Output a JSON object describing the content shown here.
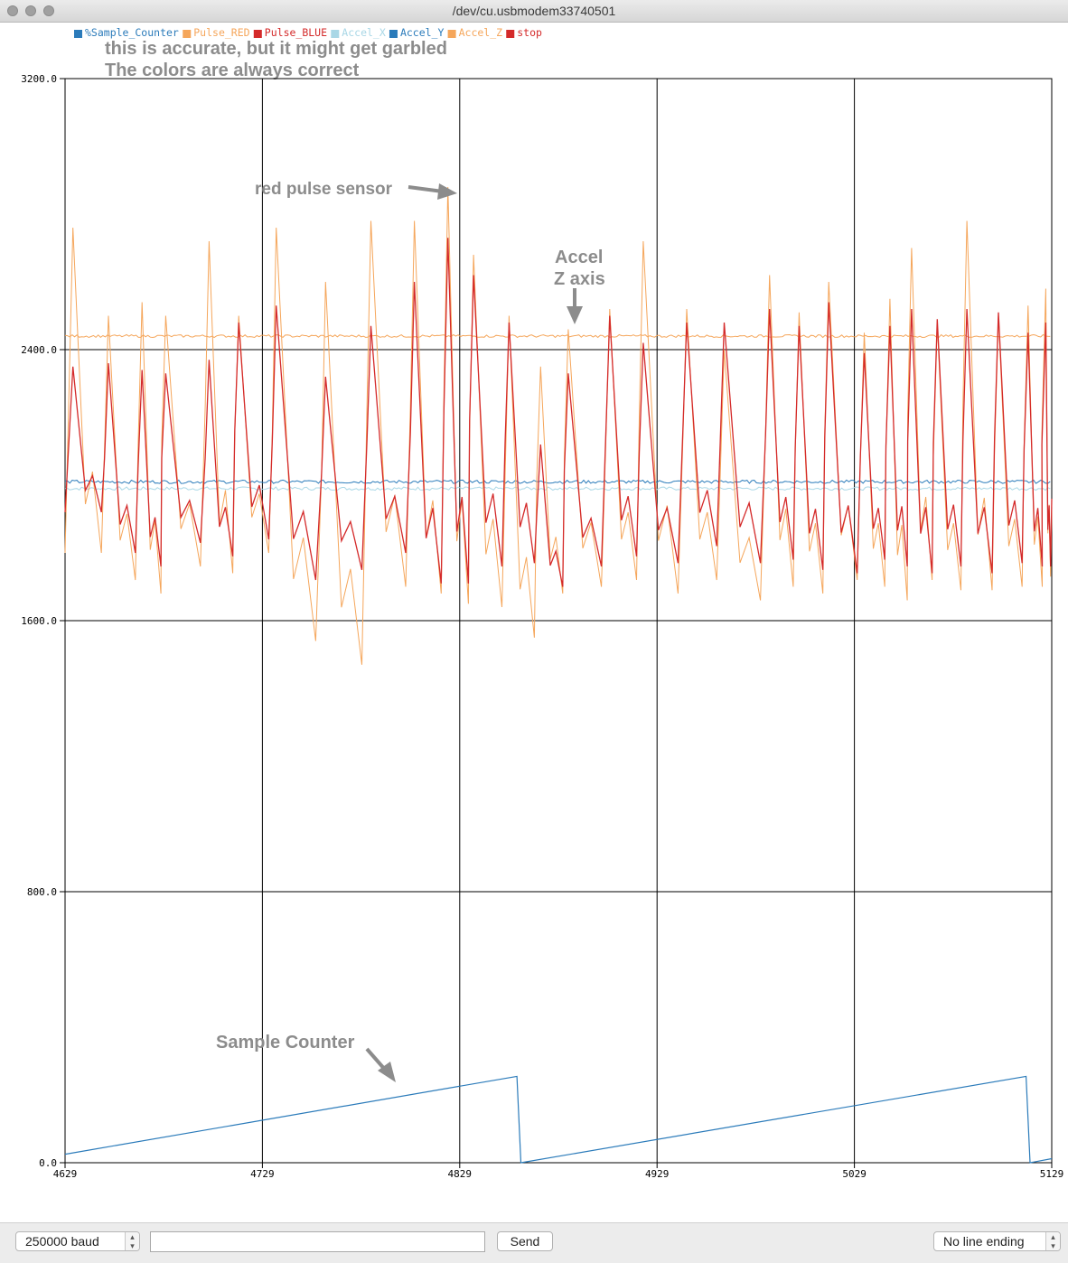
{
  "window": {
    "title": "/dev/cu.usbmodem33740501"
  },
  "legend": [
    {
      "label": "%Sample_Counter",
      "color": "#2b7bba"
    },
    {
      "label": "Pulse_RED",
      "color": "#f5a65b"
    },
    {
      "label": "Pulse_BLUE",
      "color": "#d42a2a"
    },
    {
      "label": "Accel_X",
      "color": "#a9d7e6"
    },
    {
      "label": "Accel_Y",
      "color": "#2b7bba"
    },
    {
      "label": "Accel_Z",
      "color": "#f5a65b"
    },
    {
      "label": "stop",
      "color": "#d42a2a"
    }
  ],
  "annotations": {
    "legend_note_1": "this is accurate, but it might get garbled",
    "legend_note_2": "The colors are always correct",
    "red_pulse": "red pulse sensor",
    "accel_z_1": "Accel",
    "accel_z_2": "Z axis",
    "sample_counter": "Sample Counter"
  },
  "chart_data": {
    "type": "line",
    "title": "",
    "xlabel": "",
    "ylabel": "",
    "xlim": [
      4629,
      5129
    ],
    "ylim": [
      0,
      3200
    ],
    "x_ticks": [
      "4629",
      "4729",
      "4829",
      "4929",
      "5029",
      "5129"
    ],
    "y_ticks": [
      "3200.0",
      "2400.0",
      "1600.0",
      "800.0",
      "0.0"
    ],
    "grid": true,
    "legend_position": "top-left",
    "series": [
      {
        "name": "%Sample_Counter",
        "color": "#2b7bba",
        "x": [
          4629,
          4858,
          4860,
          5116,
          5118,
          5129
        ],
        "y": [
          25,
          255,
          0,
          255,
          0,
          12
        ]
      },
      {
        "name": "Pulse_RED",
        "color": "#f5a65b",
        "peak_positions_x": [
          4633,
          4651,
          4668,
          4680,
          4702,
          4717,
          4736,
          4761,
          4784,
          4806,
          4823,
          4836,
          4854,
          4870,
          4884,
          4905,
          4922,
          4944,
          4963,
          4986,
          5001,
          5016,
          5034,
          5047,
          5058,
          5071,
          5086,
          5102,
          5117,
          5126
        ],
        "peak_values": [
          2760,
          2500,
          2540,
          2500,
          2720,
          2500,
          2760,
          2600,
          2780,
          2780,
          2880,
          2680,
          2500,
          2350,
          2460,
          2520,
          2720,
          2520,
          2400,
          2620,
          2510,
          2600,
          2450,
          2550,
          2700,
          2480,
          2780,
          2500,
          2530,
          2580
        ],
        "trough_values": [
          1800,
          1720,
          1680,
          1760,
          1740,
          1800,
          1540,
          1470,
          1700,
          1680,
          1650,
          1640,
          1550,
          1680,
          1700,
          1720,
          1680,
          1720,
          1660,
          1700,
          1680,
          1720,
          1700,
          1660,
          1720,
          1690,
          1690,
          1700,
          1700,
          1730
        ]
      },
      {
        "name": "Pulse_BLUE",
        "color": "#d42a2a",
        "peak_positions_x": [
          4633,
          4651,
          4668,
          4680,
          4702,
          4717,
          4736,
          4761,
          4784,
          4806,
          4823,
          4836,
          4854,
          4870,
          4884,
          4905,
          4922,
          4944,
          4963,
          4986,
          5001,
          5016,
          5034,
          5047,
          5058,
          5071,
          5086,
          5102,
          5117,
          5126
        ],
        "peak_values": [
          2350,
          2360,
          2340,
          2330,
          2370,
          2480,
          2530,
          2320,
          2470,
          2600,
          2730,
          2620,
          2480,
          2120,
          2330,
          2500,
          2420,
          2480,
          2480,
          2520,
          2470,
          2540,
          2390,
          2470,
          2520,
          2490,
          2520,
          2510,
          2450,
          2480
        ],
        "trough_values": [
          1920,
          1800,
          1760,
          1830,
          1790,
          1840,
          1720,
          1750,
          1800,
          1710,
          1710,
          1760,
          1770,
          1700,
          1760,
          1790,
          1770,
          1820,
          1770,
          1780,
          1750,
          1740,
          1780,
          1760,
          1740,
          1760,
          1740,
          1770,
          1760,
          1760
        ]
      },
      {
        "name": "Accel_X",
        "color": "#a9d7e6",
        "level": 1990
      },
      {
        "name": "Accel_Y",
        "color": "#2b7bba",
        "level": 2010
      },
      {
        "name": "Accel_Z",
        "color": "#f5a65b",
        "level": 2440
      }
    ]
  },
  "controls": {
    "baud": "250000 baud",
    "send_input_value": "",
    "send_label": "Send",
    "line_ending": "No line ending"
  }
}
